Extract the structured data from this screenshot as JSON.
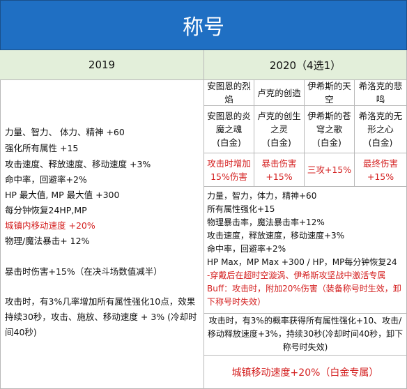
{
  "header": {
    "title": "称号"
  },
  "columns": [
    "2019",
    "2020（4选1）"
  ],
  "left": {
    "lines": [
      "力量、智力、 体力、精神 +60",
      "强化所有属性 +15",
      "攻击速度、释放速度、移动速度 +3%",
      "命中率，回避率+2%",
      "HP 最大值, MP 最大值 +300",
      "每分钟恢复24HP,MP",
      "城镇内移动速度 +20%",
      "物理/魔法暴击+ 12%",
      "暴击时伤害+15%（在决斗场数值减半）",
      "攻击时，有3%几率增加所有属性强化10点，效果持续30秒，攻击、施放、移动速度 + 3% (冷却时间40秒)"
    ]
  },
  "right": {
    "sets": [
      {
        "name": "安图恩的烈焰",
        "title": "安图恩的炎魔之魂",
        "grade": "(白金)",
        "effect": "攻击时增加15%伤害"
      },
      {
        "name": "卢克的创造",
        "title": "卢克的创生之灵",
        "grade": "(白金)",
        "effect": "暴击伤害+15%"
      },
      {
        "name": "伊希斯的天空",
        "title": "伊希斯的苍穹之歌",
        "grade": "(白金)",
        "effect": "三攻+15%"
      },
      {
        "name": "希洛克的悲鸣",
        "title": "希洛克的无形之心",
        "grade": "(白金)",
        "effect": "最终伤害+15%"
      }
    ],
    "common": [
      "力量，智力，体力，精神+60",
      "所有属性强化+15",
      "物理暴击率，魔法暴击率+12%",
      "攻击速度，释放速度，移动速度+3%",
      "命中率，回避率+2%",
      "HP Max，MP Max +300 / HP，MP每分钟恢复24",
      "-穿戴后在超时空漩涡、伊希斯攻坚战中激活专属Buff：攻击时，附加20%伤害（装备称号时生效，卸下称号时失效）"
    ],
    "extra": "攻击时，有3%的概率获得所有属性强化+10、攻击/移动释放速度+3%，持续30秒(冷却时间40秒，卸下称号时失效)",
    "town": "城镇移动速度+20%（白金专属）"
  }
}
